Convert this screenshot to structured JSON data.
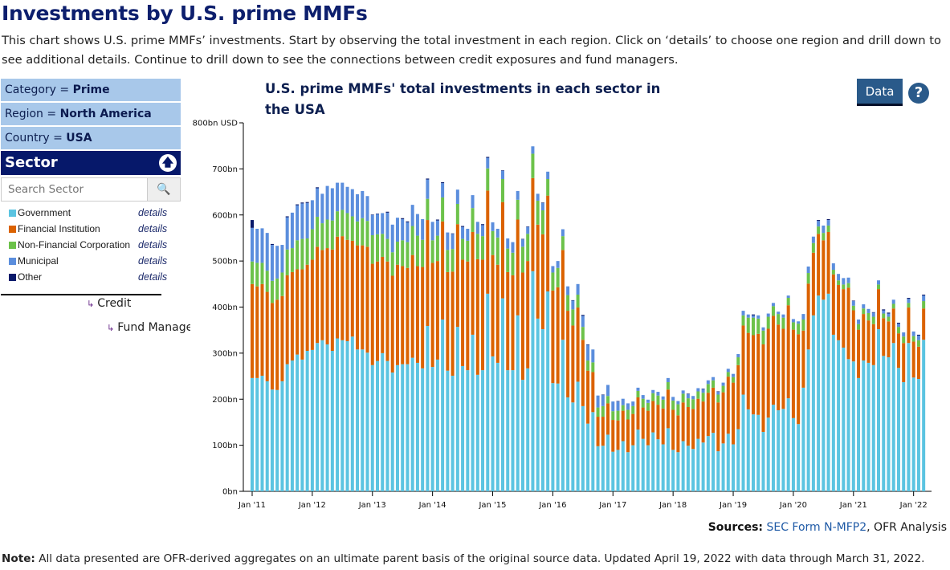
{
  "page": {
    "title": "Investments by U.S. prime MMFs",
    "description": "This chart shows U.S. prime MMFs’ investments. Start by observing the total investment in each region. Click on ‘details’ to choose one region and drill down to see additional details. Continue to drill down to see the connections between credit exposures and fund managers."
  },
  "sidebar": {
    "filters": [
      {
        "label": "Category = ",
        "value": "Prime"
      },
      {
        "label": "Region = ",
        "value": "North America"
      },
      {
        "label": "Country = ",
        "value": "USA"
      }
    ],
    "section_title": "Sector",
    "up_icon": "arrow-up-circle-icon",
    "search_placeholder": "Search Sector",
    "search_icon": "magnifier-icon",
    "details_label": "details",
    "drill_levels": [
      "Credit",
      "Fund Managers"
    ]
  },
  "toolbar": {
    "data_label": "Data",
    "help_label": "?"
  },
  "footer": {
    "sources_label": "Sources:",
    "sources_link": "SEC Form N-MFP2",
    "sources_rest": ", OFR Analysis",
    "note_label": "Note:",
    "note_text": " All data presented are OFR-derived aggregates on an ultimate parent basis of the original source data. Updated April 19, 2022 with data through March 31, 2022."
  },
  "chart_data": {
    "type": "bar",
    "stacked": true,
    "title": "U.S. prime MMFs' total investments in each sector in the USA",
    "ylabel": "",
    "xlabel": "",
    "unit": "bn USD",
    "ylim": [
      0,
      800
    ],
    "y_ticks": [
      "0bn",
      "100bn",
      "200bn",
      "300bn",
      "400bn",
      "500bn",
      "600bn",
      "700bn",
      "800bn USD"
    ],
    "x_ticks": [
      "Jan '11",
      "Jan '12",
      "Jan '13",
      "Jan '14",
      "Jan '15",
      "Jan '16",
      "Jan '17",
      "Jan '18",
      "Jan '19",
      "Jan '20",
      "Jan '21",
      "Jan '22"
    ],
    "grid": false,
    "legend": "left-panel",
    "categories": [
      "2011-01",
      "2011-02",
      "2011-03",
      "2011-04",
      "2011-05",
      "2011-06",
      "2011-07",
      "2011-08",
      "2011-09",
      "2011-10",
      "2011-11",
      "2011-12",
      "2012-01",
      "2012-02",
      "2012-03",
      "2012-04",
      "2012-05",
      "2012-06",
      "2012-07",
      "2012-08",
      "2012-09",
      "2012-10",
      "2012-11",
      "2012-12",
      "2013-01",
      "2013-02",
      "2013-03",
      "2013-04",
      "2013-05",
      "2013-06",
      "2013-07",
      "2013-08",
      "2013-09",
      "2013-10",
      "2013-11",
      "2013-12",
      "2014-01",
      "2014-02",
      "2014-03",
      "2014-04",
      "2014-05",
      "2014-06",
      "2014-07",
      "2014-08",
      "2014-09",
      "2014-10",
      "2014-11",
      "2014-12",
      "2015-01",
      "2015-02",
      "2015-03",
      "2015-04",
      "2015-05",
      "2015-06",
      "2015-07",
      "2015-08",
      "2015-09",
      "2015-10",
      "2015-11",
      "2015-12",
      "2016-01",
      "2016-02",
      "2016-03",
      "2016-04",
      "2016-05",
      "2016-06",
      "2016-07",
      "2016-08",
      "2016-09",
      "2016-10",
      "2016-11",
      "2016-12",
      "2017-01",
      "2017-02",
      "2017-03",
      "2017-04",
      "2017-05",
      "2017-06",
      "2017-07",
      "2017-08",
      "2017-09",
      "2017-10",
      "2017-11",
      "2017-12",
      "2018-01",
      "2018-02",
      "2018-03",
      "2018-04",
      "2018-05",
      "2018-06",
      "2018-07",
      "2018-08",
      "2018-09",
      "2018-10",
      "2018-11",
      "2018-12",
      "2019-01",
      "2019-02",
      "2019-03",
      "2019-04",
      "2019-05",
      "2019-06",
      "2019-07",
      "2019-08",
      "2019-09",
      "2019-10",
      "2019-11",
      "2019-12",
      "2020-01",
      "2020-02",
      "2020-03",
      "2020-04",
      "2020-05",
      "2020-06",
      "2020-07",
      "2020-08",
      "2020-09",
      "2020-10",
      "2020-11",
      "2020-12",
      "2021-01",
      "2021-02",
      "2021-03",
      "2021-04",
      "2021-05",
      "2021-06",
      "2021-07",
      "2021-08",
      "2021-09",
      "2021-10",
      "2021-11",
      "2021-12",
      "2022-01",
      "2022-02",
      "2022-03"
    ],
    "series": [
      {
        "name": "Government",
        "color": "#5bc4e1",
        "values": [
          246,
          246,
          251,
          239,
          221,
          220,
          239,
          276,
          284,
          297,
          286,
          305,
          307,
          322,
          328,
          319,
          305,
          332,
          328,
          326,
          336,
          308,
          308,
          301,
          274,
          283,
          300,
          283,
          258,
          274,
          276,
          276,
          290,
          279,
          267,
          359,
          270,
          286,
          373,
          262,
          251,
          357,
          272,
          263,
          340,
          253,
          263,
          429,
          293,
          279,
          419,
          263,
          263,
          382,
          242,
          267,
          478,
          375,
          352,
          434,
          235,
          234,
          329,
          204,
          193,
          238,
          185,
          147,
          172,
          98,
          99,
          123,
          86,
          90,
          109,
          85,
          100,
          134,
          114,
          100,
          128,
          113,
          102,
          137,
          90,
          85,
          109,
          99,
          92,
          114,
          106,
          120,
          127,
          87,
          104,
          125,
          102,
          135,
          210,
          178,
          167,
          166,
          129,
          160,
          188,
          176,
          179,
          202,
          159,
          146,
          225,
          308,
          382,
          425,
          416,
          429,
          340,
          328,
          312,
          287,
          282,
          246,
          284,
          279,
          274,
          352,
          294,
          291,
          322,
          268,
          237,
          322,
          247,
          244,
          329
        ]
      },
      {
        "name": "Financial Institution",
        "color": "#db6200",
        "values": [
          204,
          199,
          199,
          194,
          188,
          196,
          185,
          193,
          192,
          185,
          196,
          187,
          196,
          209,
          196,
          209,
          220,
          221,
          226,
          220,
          208,
          226,
          226,
          230,
          220,
          216,
          209,
          216,
          210,
          218,
          213,
          209,
          223,
          210,
          220,
          230,
          226,
          214,
          213,
          214,
          226,
          223,
          231,
          236,
          223,
          251,
          240,
          224,
          220,
          213,
          209,
          213,
          206,
          208,
          233,
          233,
          202,
          204,
          206,
          208,
          201,
          209,
          195,
          188,
          167,
          161,
          144,
          115,
          87,
          64,
          63,
          68,
          69,
          64,
          66,
          71,
          68,
          70,
          68,
          75,
          68,
          75,
          78,
          84,
          87,
          80,
          84,
          84,
          87,
          87,
          89,
          94,
          98,
          106,
          111,
          124,
          134,
          139,
          150,
          166,
          172,
          176,
          190,
          193,
          193,
          186,
          174,
          202,
          192,
          195,
          124,
          143,
          136,
          134,
          129,
          134,
          131,
          120,
          127,
          155,
          111,
          105,
          101,
          92,
          89,
          87,
          82,
          78,
          75,
          75,
          85,
          77,
          78,
          70,
          68
        ]
      },
      {
        "name": "Non-Financial Corporation",
        "color": "#6cc24a",
        "values": [
          49,
          51,
          46,
          46,
          48,
          46,
          51,
          56,
          52,
          63,
          66,
          57,
          66,
          65,
          58,
          62,
          63,
          55,
          57,
          58,
          53,
          52,
          59,
          56,
          62,
          59,
          50,
          49,
          51,
          50,
          56,
          56,
          63,
          66,
          59,
          46,
          49,
          55,
          52,
          48,
          49,
          44,
          45,
          45,
          52,
          55,
          51,
          48,
          52,
          59,
          50,
          51,
          49,
          43,
          56,
          59,
          53,
          52,
          52,
          36,
          39,
          42,
          30,
          34,
          35,
          28,
          28,
          22,
          21,
          20,
          23,
          16,
          19,
          21,
          12,
          21,
          17,
          14,
          19,
          17,
          17,
          20,
          19,
          16,
          20,
          24,
          19,
          19,
          21,
          16,
          19,
          19,
          16,
          17,
          14,
          10,
          12,
          17,
          22,
          33,
          38,
          33,
          30,
          26,
          21,
          23,
          24,
          16,
          16,
          23,
          24,
          23,
          21,
          16,
          16,
          14,
          10,
          10,
          10,
          10,
          10,
          12,
          12,
          16,
          16,
          10,
          10,
          10,
          10,
          14,
          14,
          10,
          12,
          14,
          16
        ]
      },
      {
        "name": "Municipal",
        "color": "#5b8edd",
        "values": [
          73,
          74,
          75,
          82,
          78,
          71,
          60,
          70,
          77,
          76,
          77,
          77,
          63,
          62,
          64,
          73,
          70,
          62,
          59,
          57,
          59,
          59,
          59,
          54,
          44,
          44,
          45,
          57,
          60,
          52,
          46,
          43,
          46,
          47,
          45,
          42,
          40,
          33,
          31,
          38,
          33,
          31,
          26,
          26,
          28,
          26,
          24,
          23,
          19,
          19,
          18,
          22,
          23,
          19,
          16,
          15,
          16,
          15,
          16,
          16,
          14,
          15,
          15,
          19,
          19,
          23,
          24,
          34,
          28,
          26,
          24,
          24,
          21,
          20,
          14,
          14,
          10,
          7,
          8,
          7,
          7,
          8,
          7,
          9,
          8,
          7,
          7,
          9,
          7,
          7,
          8,
          8,
          7,
          6,
          7,
          7,
          7,
          7,
          10,
          7,
          5,
          7,
          7,
          7,
          7,
          5,
          7,
          5,
          7,
          5,
          12,
          14,
          14,
          12,
          16,
          12,
          14,
          14,
          14,
          12,
          10,
          10,
          9,
          9,
          9,
          9,
          7,
          7,
          9,
          7,
          9,
          9,
          10,
          10,
          12
        ]
      },
      {
        "name": "Other",
        "color": "#0a1a6b",
        "values": [
          17,
          0,
          0,
          0,
          2,
          0,
          0,
          2,
          0,
          2,
          2,
          2,
          0,
          2,
          0,
          0,
          0,
          0,
          0,
          0,
          0,
          0,
          0,
          0,
          1,
          1,
          0,
          2,
          0,
          0,
          2,
          2,
          0,
          0,
          0,
          2,
          0,
          2,
          2,
          0,
          1,
          0,
          2,
          0,
          0,
          0,
          2,
          2,
          0,
          0,
          1,
          0,
          0,
          0,
          1,
          1,
          0,
          0,
          1,
          0,
          0,
          0,
          0,
          0,
          1,
          0,
          2,
          1,
          0,
          0,
          1,
          0,
          0,
          1,
          0,
          0,
          0,
          0,
          0,
          0,
          0,
          0,
          0,
          0,
          0,
          0,
          0,
          1,
          0,
          0,
          1,
          0,
          0,
          1,
          0,
          0,
          0,
          0,
          0,
          0,
          2,
          0,
          0,
          0,
          0,
          0,
          0,
          0,
          0,
          0,
          0,
          0,
          0,
          2,
          0,
          2,
          0,
          0,
          0,
          0,
          1,
          0,
          0,
          0,
          1,
          0,
          2,
          2,
          0,
          2,
          0,
          2,
          0,
          2,
          2
        ]
      }
    ],
    "sources": "SEC Form N-MFP2, OFR Analysis"
  }
}
